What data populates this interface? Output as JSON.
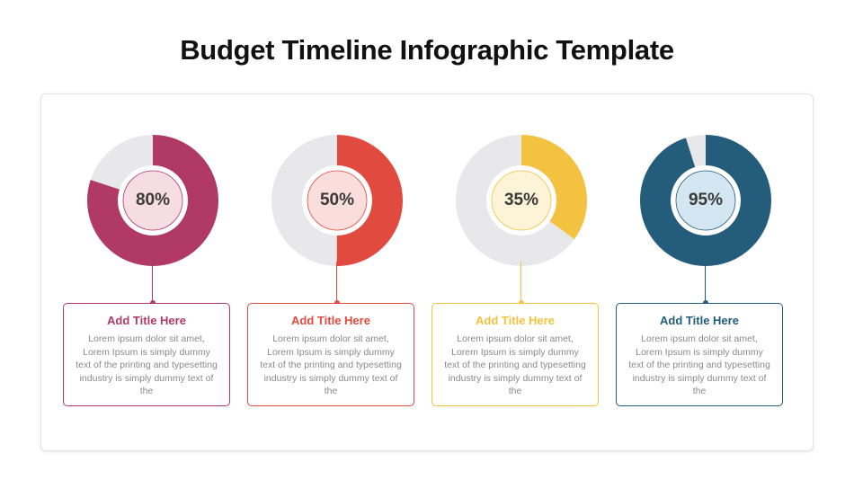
{
  "title": "Budget Timeline Infographic Template",
  "items": [
    {
      "percent": 80,
      "label": "80%",
      "title": "Add Title Here",
      "body": "Lorem ipsum dolor sit amet, Lorem Ipsum is simply dummy text of the printing and typesetting industry is simply dummy text of the",
      "color": "#b03a63",
      "inner_fill": "#f6dde3",
      "track": "#e8e8ea"
    },
    {
      "percent": 50,
      "label": "50%",
      "title": "Add Title Here",
      "body": "Lorem ipsum dolor sit amet, Lorem Ipsum is simply dummy text of the printing and typesetting industry is simply dummy text of the",
      "color": "#e04a3f",
      "inner_fill": "#f9dedc",
      "track": "#e8e8ea"
    },
    {
      "percent": 35,
      "label": "35%",
      "title": "Add Title Here",
      "body": "Lorem ipsum dolor sit amet, Lorem Ipsum is simply dummy text of the printing and typesetting industry is simply dummy text of the",
      "color": "#f3c240",
      "inner_fill": "#fdf3d6",
      "track": "#e8e8ea"
    },
    {
      "percent": 95,
      "label": "95%",
      "title": "Add Title Here",
      "body": "Lorem ipsum dolor sit amet, Lorem Ipsum is simply dummy text of the printing and typesetting industry is simply dummy text of the",
      "color": "#245c7b",
      "inner_fill": "#d4e6f1",
      "track": "#e8e8ea"
    }
  ]
}
